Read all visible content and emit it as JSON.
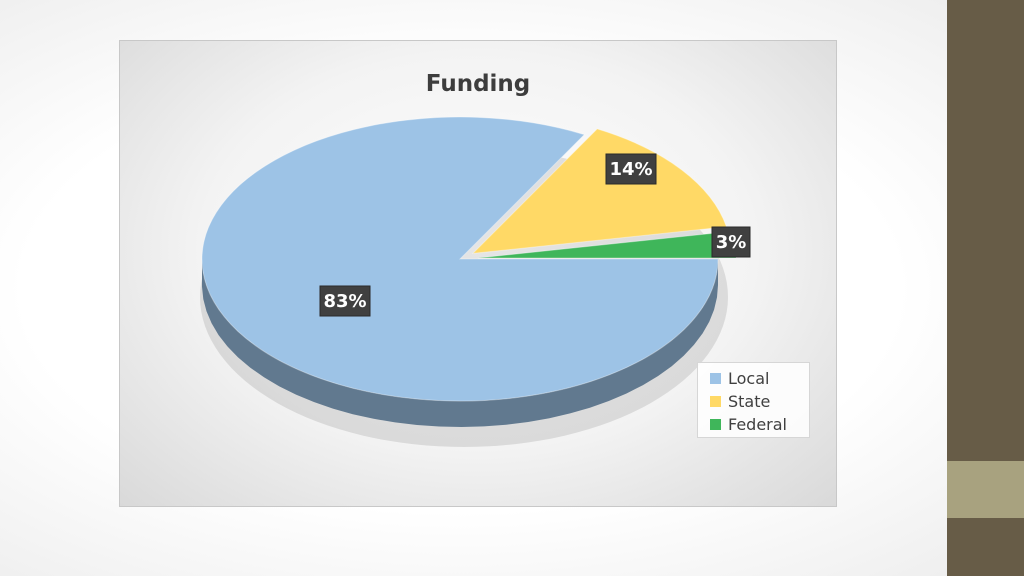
{
  "chart_data": {
    "type": "pie",
    "title": "Funding",
    "categories": [
      "Local",
      "State",
      "Federal"
    ],
    "values": [
      83,
      14,
      3
    ],
    "data_labels": [
      "83%",
      "14%",
      "3%"
    ],
    "colors": [
      "#9dc3e6",
      "#ffd966",
      "#3fb65a"
    ],
    "exploded": [
      "State",
      "Federal"
    ],
    "style": "3d",
    "legend": "bottom-right"
  },
  "theme": {
    "side_bar_color": "#675c47",
    "side_accent_color": "#a8a27f"
  }
}
